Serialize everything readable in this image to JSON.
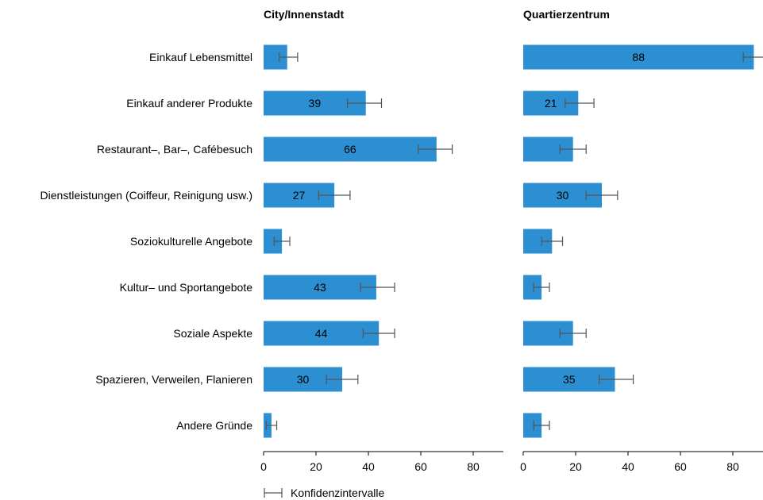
{
  "chart_data": {
    "type": "bar",
    "orientation": "horizontal",
    "categories": [
      "Einkauf Lebensmittel",
      "Einkauf anderer Produkte",
      "Restaurant–, Bar–, Cafébesuch",
      "Dienstleistungen (Coiffeur, Reinigung usw.)",
      "Soziokulturelle Angebote",
      "Kultur– und Sportangebote",
      "Soziale Aspekte",
      "Spazieren, Verweilen, Flanieren",
      "Andere Gründe"
    ],
    "xlim": [
      0,
      92
    ],
    "xticks": [
      0,
      20,
      40,
      60,
      80
    ],
    "grid": false,
    "bar_color": "#2b8fd2",
    "error_color": "#555555",
    "panels": [
      {
        "title": "City/Innenstadt",
        "values": [
          9,
          39,
          66,
          27,
          7,
          43,
          44,
          30,
          3
        ],
        "labels": [
          "",
          "39",
          "66",
          "27",
          "",
          "43",
          "44",
          "30",
          ""
        ],
        "ci": [
          [
            6,
            13
          ],
          [
            32,
            45
          ],
          [
            59,
            72
          ],
          [
            21,
            33
          ],
          [
            4,
            10
          ],
          [
            37,
            50
          ],
          [
            38,
            50
          ],
          [
            24,
            36
          ],
          [
            1,
            5
          ]
        ]
      },
      {
        "title": "Quartierzentrum",
        "values": [
          88,
          21,
          19,
          30,
          11,
          7,
          19,
          35,
          7
        ],
        "labels": [
          "88",
          "21",
          "",
          "30",
          "",
          "",
          "",
          "35",
          ""
        ],
        "ci": [
          [
            84,
            92
          ],
          [
            16,
            27
          ],
          [
            14,
            24
          ],
          [
            24,
            36
          ],
          [
            7,
            15
          ],
          [
            4,
            10
          ],
          [
            14,
            24
          ],
          [
            29,
            42
          ],
          [
            4,
            10
          ]
        ]
      }
    ],
    "legend": {
      "label": "Konfidenzintervalle",
      "position": "bottom-left"
    }
  }
}
